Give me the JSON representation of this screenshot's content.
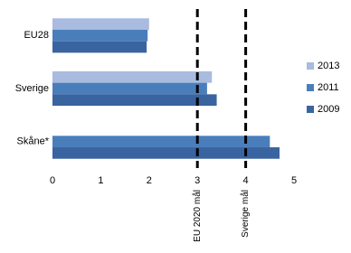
{
  "chart_data": {
    "type": "hbar",
    "categories": [
      "EU28",
      "Sverige",
      "Skåne*"
    ],
    "series": [
      {
        "name": "2013",
        "color": "#a9bbdf",
        "values": [
          2.0,
          3.3,
          null
        ]
      },
      {
        "name": "2011",
        "color": "#4a7ebb",
        "values": [
          1.97,
          3.2,
          4.5
        ]
      },
      {
        "name": "2009",
        "color": "#3a64a0",
        "values": [
          1.95,
          3.4,
          4.7
        ]
      }
    ],
    "xlim": [
      0,
      5
    ],
    "xticks": [
      0,
      1,
      2,
      3,
      4,
      5
    ],
    "reference_lines": [
      {
        "value": 3,
        "label": "EU 2020 mål"
      },
      {
        "value": 4,
        "label": "Sverige mål"
      }
    ],
    "legend": "right"
  }
}
